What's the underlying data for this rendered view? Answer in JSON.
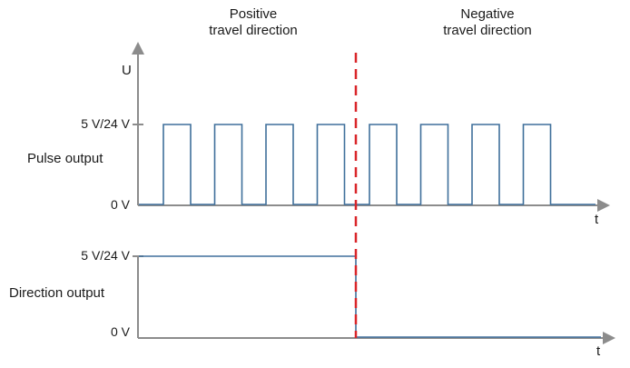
{
  "headings": {
    "positive_line1": "Positive",
    "positive_line2": "travel direction",
    "negative_line1": "Negative",
    "negative_line2": "travel direction"
  },
  "pulse_chart": {
    "y_axis_label": "U",
    "x_axis_label": "t",
    "high_level_label": "5 V/24 V",
    "low_level_label": "0 V",
    "signal_name": "Pulse output",
    "pulse_count_before_switch": 4,
    "pulse_count_after_switch": 4
  },
  "direction_chart": {
    "x_axis_label": "t",
    "high_level_label": "5 V/24 V",
    "low_level_label": "0 V",
    "signal_name": "Direction output",
    "level_before_switch": "high",
    "level_after_switch": "low"
  },
  "colors": {
    "axis": "#8c8c8c",
    "signal": "#3f6f9b",
    "divider": "#d9262a",
    "text": "#1a1a1a"
  }
}
